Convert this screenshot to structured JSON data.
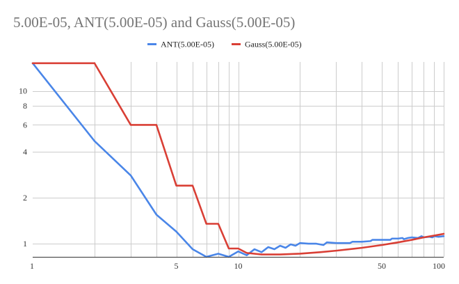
{
  "chart_data": {
    "type": "line",
    "title": "5.00E-05, ANT(5.00E-05) and Gauss(5.00E-05)",
    "xscale": "log",
    "yscale": "log",
    "xlim": [
      1,
      100
    ],
    "ylim": [
      0.82,
      15.5
    ],
    "x_ticks": [
      1,
      5,
      10,
      50,
      100
    ],
    "x_tick_labels": [
      "1",
      "5",
      "10",
      "50",
      "100"
    ],
    "x_minor_grid": [
      2,
      3,
      4,
      6,
      7,
      8,
      9,
      20,
      30,
      40,
      60,
      70,
      80,
      90
    ],
    "y_ticks": [
      1,
      2,
      4,
      6,
      8,
      10
    ],
    "y_tick_labels": [
      "1",
      "2",
      "4",
      "6",
      "8",
      "10"
    ],
    "grid": true,
    "legend_position": "top",
    "series": [
      {
        "name": "ANT(5.00E-05)",
        "color": "#4a86e8",
        "points": [
          [
            1,
            15.2
          ],
          [
            2,
            4.7
          ],
          [
            3,
            2.8
          ],
          [
            4,
            1.55
          ],
          [
            5,
            1.2
          ],
          [
            6,
            0.92
          ],
          [
            7,
            0.82
          ],
          [
            8,
            0.86
          ],
          [
            9,
            0.82
          ],
          [
            10,
            0.89
          ],
          [
            11,
            0.84
          ],
          [
            12,
            0.92
          ],
          [
            13,
            0.88
          ],
          [
            14,
            0.95
          ],
          [
            15,
            0.92
          ],
          [
            16,
            0.97
          ],
          [
            17,
            0.94
          ],
          [
            18,
            0.99
          ],
          [
            19,
            0.97
          ],
          [
            20,
            1.01
          ],
          [
            22,
            1.0
          ],
          [
            24,
            1.0
          ],
          [
            26,
            0.98
          ],
          [
            27,
            1.02
          ],
          [
            30,
            1.01
          ],
          [
            35,
            1.01
          ],
          [
            36,
            1.03
          ],
          [
            40,
            1.03
          ],
          [
            44,
            1.04
          ],
          [
            45,
            1.06
          ],
          [
            50,
            1.06
          ],
          [
            55,
            1.06
          ],
          [
            56,
            1.08
          ],
          [
            60,
            1.08
          ],
          [
            63,
            1.09
          ],
          [
            64,
            1.07
          ],
          [
            67,
            1.09
          ],
          [
            70,
            1.1
          ],
          [
            75,
            1.09
          ],
          [
            78,
            1.12
          ],
          [
            80,
            1.1
          ],
          [
            85,
            1.11
          ],
          [
            88,
            1.1
          ],
          [
            90,
            1.12
          ],
          [
            94,
            1.11
          ],
          [
            100,
            1.12
          ]
        ]
      },
      {
        "name": "Gauss(5.00E-05)",
        "color": "#d93f35",
        "points": [
          [
            1,
            15.2
          ],
          [
            2,
            15.2
          ],
          [
            3,
            6.0
          ],
          [
            4,
            6.0
          ],
          [
            5,
            2.4
          ],
          [
            6,
            2.4
          ],
          [
            7,
            1.35
          ],
          [
            8,
            1.35
          ],
          [
            9,
            0.93
          ],
          [
            10,
            0.93
          ],
          [
            11,
            0.87
          ],
          [
            13,
            0.85
          ],
          [
            16,
            0.85
          ],
          [
            20,
            0.86
          ],
          [
            25,
            0.88
          ],
          [
            30,
            0.9
          ],
          [
            40,
            0.94
          ],
          [
            50,
            0.98
          ],
          [
            60,
            1.02
          ],
          [
            70,
            1.06
          ],
          [
            80,
            1.1
          ],
          [
            90,
            1.13
          ],
          [
            100,
            1.16
          ]
        ]
      }
    ]
  }
}
